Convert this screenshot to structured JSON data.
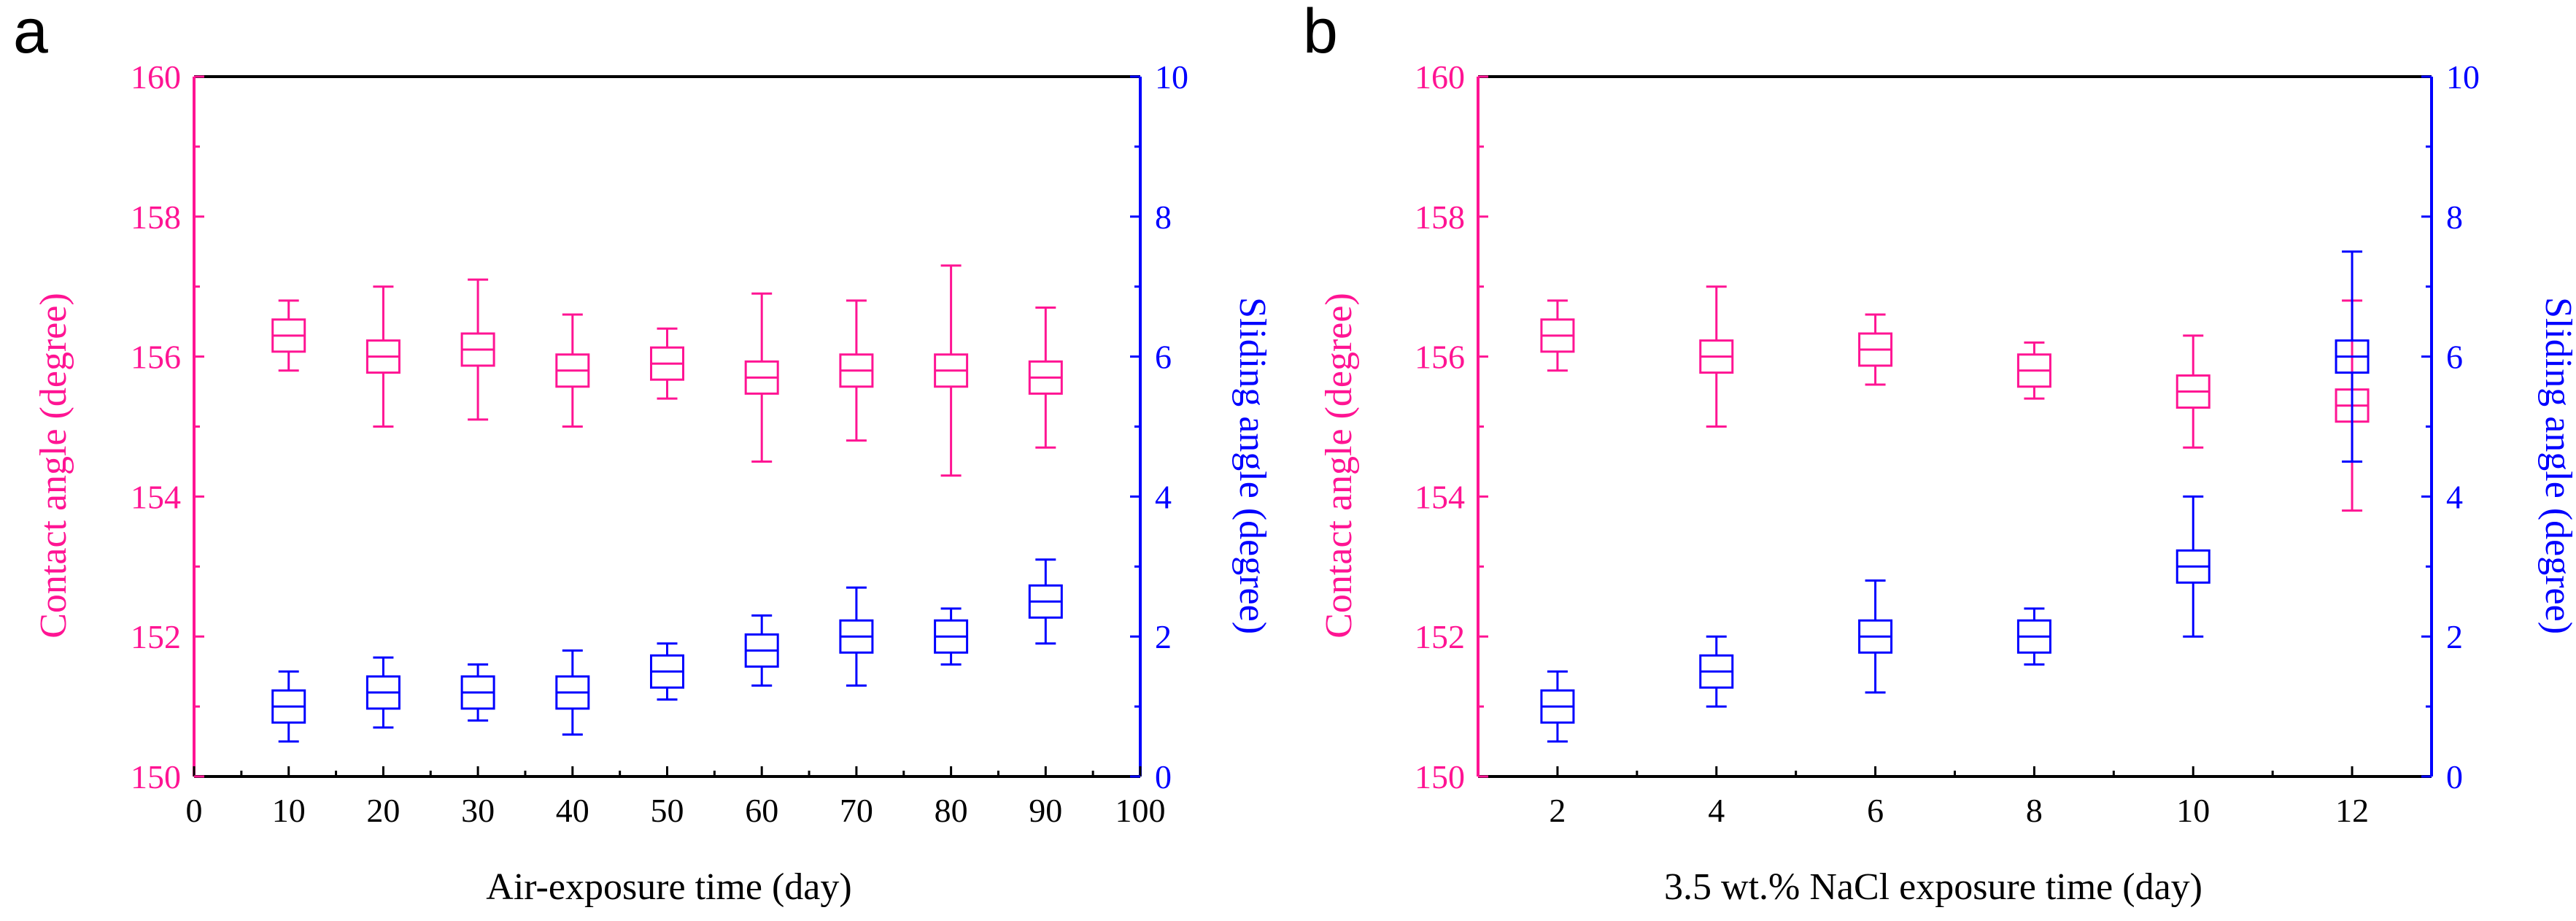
{
  "colors": {
    "contact": "#ff1493",
    "sliding": "#0000ff",
    "frame": "#000000"
  },
  "chart_data": [
    {
      "type": "scatter",
      "panel_label": "a",
      "xlabel": "Air-exposure time (day)",
      "ylabel_left": "Contact angle (degree)",
      "ylabel_right": "Sliding angle (degree)",
      "xlim": [
        0,
        100
      ],
      "ylim_left": [
        150,
        160
      ],
      "ylim_right": [
        0,
        10
      ],
      "x_ticks": [
        "0",
        "10",
        "20",
        "30",
        "40",
        "50",
        "60",
        "70",
        "80",
        "90",
        "100"
      ],
      "y_left_ticks": [
        "150",
        "152",
        "154",
        "156",
        "158",
        "160"
      ],
      "y_right_ticks": [
        "0",
        "2",
        "4",
        "6",
        "8",
        "10"
      ],
      "x_tick_values": [
        0,
        10,
        20,
        30,
        40,
        50,
        60,
        70,
        80,
        90,
        100
      ],
      "y_left_tick_values": [
        150,
        152,
        154,
        156,
        158,
        160
      ],
      "y_right_tick_values": [
        0,
        2,
        4,
        6,
        8,
        10
      ],
      "series": [
        {
          "name": "Contact angle",
          "axis": "left",
          "color_key": "contact",
          "x": [
            10,
            20,
            30,
            40,
            50,
            60,
            70,
            80,
            90
          ],
          "y": [
            156.3,
            156.0,
            156.1,
            155.8,
            155.9,
            155.7,
            155.8,
            155.8,
            155.7
          ],
          "err": [
            0.5,
            1.0,
            1.0,
            0.8,
            0.5,
            1.2,
            1.0,
            1.5,
            1.0
          ]
        },
        {
          "name": "Sliding angle",
          "axis": "right",
          "color_key": "sliding",
          "x": [
            10,
            20,
            30,
            40,
            50,
            60,
            70,
            80,
            90
          ],
          "y": [
            1.0,
            1.2,
            1.2,
            1.2,
            1.5,
            1.8,
            2.0,
            2.0,
            2.5
          ],
          "err": [
            0.5,
            0.5,
            0.4,
            0.6,
            0.4,
            0.5,
            0.7,
            0.4,
            0.6
          ]
        }
      ]
    },
    {
      "type": "scatter",
      "panel_label": "b",
      "xlabel": "3.5 wt.% NaCl exposure time (day)",
      "ylabel_left": "Contact angle (degree)",
      "ylabel_right": "Sliding angle (degree)",
      "xlim": [
        1,
        13
      ],
      "ylim_left": [
        150,
        160
      ],
      "ylim_right": [
        0,
        10
      ],
      "x_ticks": [
        "2",
        "4",
        "6",
        "8",
        "10",
        "12"
      ],
      "y_left_ticks": [
        "150",
        "152",
        "154",
        "156",
        "158",
        "160"
      ],
      "y_right_ticks": [
        "0",
        "2",
        "4",
        "6",
        "8",
        "10"
      ],
      "x_tick_values": [
        2,
        4,
        6,
        8,
        10,
        12
      ],
      "y_left_tick_values": [
        150,
        152,
        154,
        156,
        158,
        160
      ],
      "y_right_tick_values": [
        0,
        2,
        4,
        6,
        8,
        10
      ],
      "series": [
        {
          "name": "Contact angle",
          "axis": "left",
          "color_key": "contact",
          "x": [
            2,
            4,
            6,
            8,
            10,
            12
          ],
          "y": [
            156.3,
            156.0,
            156.1,
            155.8,
            155.5,
            155.3
          ],
          "err": [
            0.5,
            1.0,
            0.5,
            0.4,
            0.8,
            1.5
          ]
        },
        {
          "name": "Sliding angle",
          "axis": "right",
          "color_key": "sliding",
          "x": [
            2,
            4,
            6,
            8,
            10,
            12
          ],
          "y": [
            1.0,
            1.5,
            2.0,
            2.0,
            3.0,
            6.0
          ],
          "err": [
            0.5,
            0.5,
            0.8,
            0.4,
            1.0,
            1.5
          ]
        }
      ]
    }
  ]
}
